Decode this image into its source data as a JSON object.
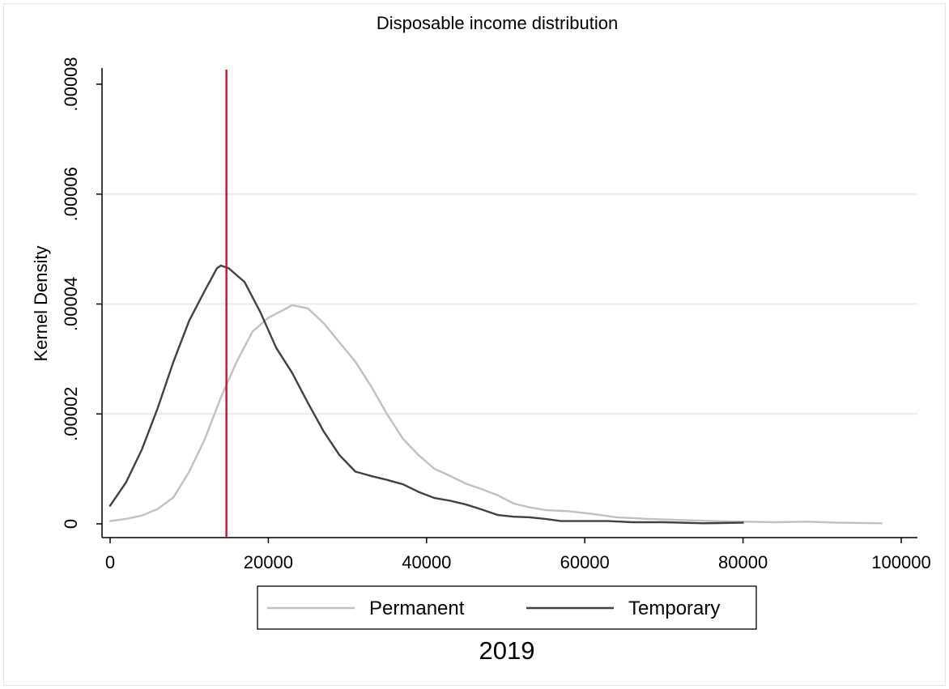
{
  "chart_data": {
    "type": "line",
    "title": "Disposable income distribution",
    "ylabel": "Kernel Density",
    "xlabel": "",
    "caption": "2019",
    "xlim": [
      0,
      100000
    ],
    "ylim": [
      0,
      8e-05
    ],
    "x_ticks": [
      0,
      20000,
      40000,
      60000,
      80000,
      100000
    ],
    "x_tick_labels": [
      "0",
      "20000",
      "40000",
      "60000",
      "80000",
      "100000"
    ],
    "y_ticks": [
      0,
      2e-05,
      4e-05,
      6e-05,
      8e-05
    ],
    "y_tick_labels": [
      "0",
      ".00002",
      ".00004",
      ".00006",
      ".00008"
    ],
    "grid": "horizontal",
    "legend_position": "bottom",
    "vline": {
      "x": 14700,
      "color": "#c8102e"
    },
    "series": [
      {
        "name": "Permanent",
        "color": "#c0c0c0",
        "points": [
          [
            0,
            5e-07
          ],
          [
            2000,
            9e-07
          ],
          [
            4000,
            1.5e-06
          ],
          [
            6000,
            2.7e-06
          ],
          [
            8000,
            4.8e-06
          ],
          [
            10000,
            9.5e-06
          ],
          [
            12000,
            1.55e-05
          ],
          [
            14000,
            2.3e-05
          ],
          [
            16000,
            2.95e-05
          ],
          [
            18000,
            3.5e-05
          ],
          [
            20000,
            3.75e-05
          ],
          [
            22000,
            3.9e-05
          ],
          [
            23000,
            3.98e-05
          ],
          [
            25000,
            3.92e-05
          ],
          [
            27000,
            3.65e-05
          ],
          [
            29000,
            3.3e-05
          ],
          [
            31000,
            2.95e-05
          ],
          [
            33000,
            2.5e-05
          ],
          [
            35000,
            2e-05
          ],
          [
            37000,
            1.55e-05
          ],
          [
            39000,
            1.25e-05
          ],
          [
            41000,
            1e-05
          ],
          [
            43000,
            8.7e-06
          ],
          [
            45000,
            7.3e-06
          ],
          [
            47000,
            6.3e-06
          ],
          [
            49000,
            5.2e-06
          ],
          [
            51000,
            3.7e-06
          ],
          [
            53000,
            3e-06
          ],
          [
            55000,
            2.5e-06
          ],
          [
            58000,
            2.3e-06
          ],
          [
            61000,
            1.8e-06
          ],
          [
            64000,
            1.2e-06
          ],
          [
            68000,
            9e-07
          ],
          [
            72000,
            7e-07
          ],
          [
            76000,
            5e-07
          ],
          [
            80000,
            4e-07
          ],
          [
            84000,
            3e-07
          ],
          [
            88000,
            4e-07
          ],
          [
            92000,
            2e-07
          ],
          [
            97500,
            1e-07
          ]
        ]
      },
      {
        "name": "Temporary",
        "color": "#404040",
        "points": [
          [
            0,
            3.3e-06
          ],
          [
            2000,
            7.5e-06
          ],
          [
            4000,
            1.35e-05
          ],
          [
            6000,
            2.1e-05
          ],
          [
            8000,
            2.95e-05
          ],
          [
            10000,
            3.7e-05
          ],
          [
            12000,
            4.25e-05
          ],
          [
            13500,
            4.65e-05
          ],
          [
            14000,
            4.7e-05
          ],
          [
            15000,
            4.65e-05
          ],
          [
            17000,
            4.4e-05
          ],
          [
            19000,
            3.85e-05
          ],
          [
            21000,
            3.2e-05
          ],
          [
            23000,
            2.75e-05
          ],
          [
            25000,
            2.2e-05
          ],
          [
            27000,
            1.68e-05
          ],
          [
            29000,
            1.25e-05
          ],
          [
            31000,
            9.5e-06
          ],
          [
            33000,
            8.7e-06
          ],
          [
            35000,
            8e-06
          ],
          [
            37000,
            7.2e-06
          ],
          [
            39000,
            5.8e-06
          ],
          [
            41000,
            4.7e-06
          ],
          [
            43000,
            4.2e-06
          ],
          [
            45000,
            3.5e-06
          ],
          [
            47000,
            2.6e-06
          ],
          [
            49000,
            1.6e-06
          ],
          [
            51000,
            1.3e-06
          ],
          [
            53000,
            1.2e-06
          ],
          [
            55000,
            9e-07
          ],
          [
            57000,
            5e-07
          ],
          [
            60000,
            5e-07
          ],
          [
            63000,
            5e-07
          ],
          [
            66000,
            3e-07
          ],
          [
            70000,
            3e-07
          ],
          [
            75000,
            1e-07
          ],
          [
            80000,
            2e-07
          ]
        ]
      }
    ]
  }
}
